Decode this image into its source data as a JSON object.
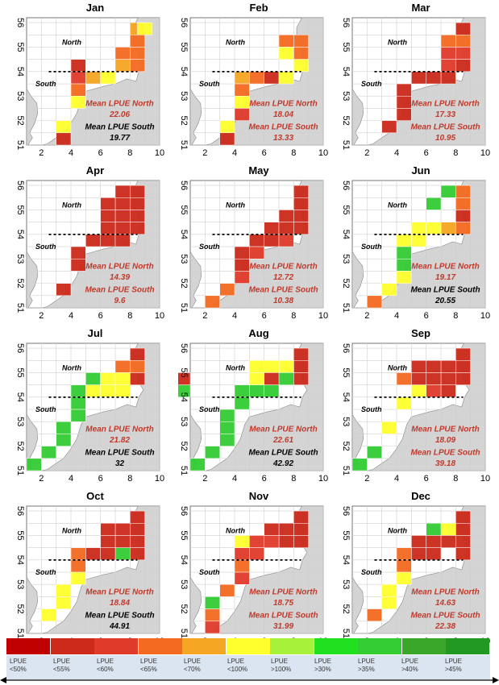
{
  "axes": {
    "x_ticks": [
      "2",
      "4",
      "6",
      "8",
      "10"
    ],
    "y_ticks": [
      "51",
      "52",
      "53",
      "54",
      "55",
      "56"
    ]
  },
  "labels": {
    "north": "North",
    "south": "South",
    "mean_north": "Mean LPUE North",
    "mean_south": "Mean LPUE South"
  },
  "colors": {
    "c1": "#c00000",
    "c2": "#cc2a1a",
    "c3": "#e03b2a",
    "c4": "#f46a20",
    "c5": "#f5a623",
    "c6": "#ffff2e",
    "c7": "#a6f23a",
    "c8": "#20e020",
    "c9": "#33cc33",
    "c10": "#3aa62a",
    "c11": "#229922",
    "land": "#d4d4d4",
    "sea": "#ffffff"
  },
  "months": [
    {
      "name": "Jan",
      "north": "22.06",
      "south": "19.77",
      "north_color": "#c0392b",
      "south_color": "#000000",
      "cells": [
        [
          8,
          55.5,
          "c5"
        ],
        [
          8,
          55,
          "c4"
        ],
        [
          8,
          54.5,
          "c4"
        ],
        [
          7,
          54.5,
          "c4"
        ],
        [
          8,
          54,
          "c4"
        ],
        [
          7,
          54,
          "c5"
        ],
        [
          4,
          54,
          "c2"
        ],
        [
          5,
          53.5,
          "c5"
        ],
        [
          4,
          53.5,
          "c3"
        ],
        [
          6,
          53.5,
          "c6"
        ],
        [
          4,
          53,
          "c4"
        ],
        [
          4,
          52.5,
          "c6"
        ],
        [
          3,
          51.5,
          "c6"
        ],
        [
          3,
          51,
          "c2"
        ],
        [
          8.5,
          55.5,
          "c6"
        ]
      ]
    },
    {
      "name": "Feb",
      "north": "18.04",
      "south": "13.33",
      "north_color": "#c0392b",
      "south_color": "#c0392b",
      "cells": [
        [
          8,
          55,
          "c4"
        ],
        [
          7,
          55,
          "c4"
        ],
        [
          8,
          54.5,
          "c4"
        ],
        [
          7,
          54.5,
          "c6"
        ],
        [
          8,
          54,
          "c6"
        ],
        [
          6,
          53.5,
          "c2"
        ],
        [
          5,
          53.5,
          "c4"
        ],
        [
          4,
          53.5,
          "c5"
        ],
        [
          4,
          53,
          "c4"
        ],
        [
          4,
          52.5,
          "c6"
        ],
        [
          4,
          52,
          "c3"
        ],
        [
          3,
          51.5,
          "c6"
        ],
        [
          3,
          51,
          "c2"
        ],
        [
          7,
          53.5,
          "c6"
        ]
      ]
    },
    {
      "name": "Mar",
      "north": "17.33",
      "south": "10.95",
      "north_color": "#c0392b",
      "south_color": "#c0392b",
      "cells": [
        [
          8,
          55.5,
          "c2"
        ],
        [
          8,
          55,
          "c4"
        ],
        [
          7,
          55,
          "c4"
        ],
        [
          8,
          54.5,
          "c3"
        ],
        [
          7,
          54.5,
          "c3"
        ],
        [
          8,
          54,
          "c2"
        ],
        [
          7,
          53.5,
          "c2"
        ],
        [
          6,
          53.5,
          "c2"
        ],
        [
          5,
          53.5,
          "c2"
        ],
        [
          4,
          53,
          "c2"
        ],
        [
          4,
          52.5,
          "c2"
        ],
        [
          4,
          52,
          "c2"
        ],
        [
          3,
          51.5,
          "c2"
        ],
        [
          7,
          54,
          "c3"
        ]
      ]
    },
    {
      "name": "Apr",
      "north": "14.39",
      "south": "9.6",
      "north_color": "#c0392b",
      "south_color": "#c0392b",
      "cells": [
        [
          8,
          55.5,
          "c2"
        ],
        [
          7,
          55.5,
          "c2"
        ],
        [
          8,
          55,
          "c2"
        ],
        [
          7,
          55,
          "c2"
        ],
        [
          6,
          55,
          "c2"
        ],
        [
          8,
          54.5,
          "c2"
        ],
        [
          7,
          54.5,
          "c2"
        ],
        [
          6,
          54.5,
          "c2"
        ],
        [
          8,
          54,
          "c2"
        ],
        [
          7,
          54,
          "c2"
        ],
        [
          6,
          54,
          "c2"
        ],
        [
          6,
          53.5,
          "c2"
        ],
        [
          5,
          53.5,
          "c2"
        ],
        [
          4,
          53,
          "c2"
        ],
        [
          4,
          52.5,
          "c2"
        ],
        [
          3,
          51.5,
          "c2"
        ],
        [
          7,
          53.5,
          "c2"
        ]
      ]
    },
    {
      "name": "May",
      "north": "12.72",
      "south": "10.38",
      "north_color": "#c0392b",
      "south_color": "#c0392b",
      "cells": [
        [
          8,
          55.5,
          "c2"
        ],
        [
          8,
          55,
          "c2"
        ],
        [
          8,
          54.5,
          "c2"
        ],
        [
          7,
          54.5,
          "c2"
        ],
        [
          6,
          54,
          "c2"
        ],
        [
          8,
          54,
          "c2"
        ],
        [
          7,
          54,
          "c2"
        ],
        [
          5,
          53.5,
          "c2"
        ],
        [
          6,
          53.5,
          "c2"
        ],
        [
          7,
          53.5,
          "c3"
        ],
        [
          4,
          53,
          "c2"
        ],
        [
          4,
          52.5,
          "c2"
        ],
        [
          4,
          52,
          "c3"
        ],
        [
          3,
          51.5,
          "c4"
        ],
        [
          2,
          51,
          "c4"
        ],
        [
          5,
          53,
          "c3"
        ]
      ]
    },
    {
      "name": "Jun",
      "north": "19.17",
      "south": "20.55",
      "north_color": "#c0392b",
      "south_color": "#000000",
      "cells": [
        [
          7,
          55.5,
          "c9"
        ],
        [
          8,
          55.5,
          "c4"
        ],
        [
          6,
          55,
          "c9"
        ],
        [
          8,
          55,
          "c4"
        ],
        [
          8,
          54.5,
          "c2"
        ],
        [
          8,
          54,
          "c4"
        ],
        [
          7,
          54,
          "c5"
        ],
        [
          6,
          54,
          "c6"
        ],
        [
          5,
          54,
          "c6"
        ],
        [
          4,
          53.5,
          "c6"
        ],
        [
          4,
          53,
          "c9"
        ],
        [
          4,
          52.5,
          "c9"
        ],
        [
          4,
          52,
          "c6"
        ],
        [
          3,
          51.5,
          "c6"
        ],
        [
          2,
          51,
          "c4"
        ],
        [
          5,
          53.5,
          "c6"
        ]
      ]
    },
    {
      "name": "Jul",
      "north": "21.82",
      "south": "32",
      "north_color": "#c0392b",
      "south_color": "#000000",
      "cells": [
        [
          8,
          55.5,
          "c2"
        ],
        [
          8,
          55,
          "c4"
        ],
        [
          7,
          55,
          "c4"
        ],
        [
          8,
          54.5,
          "c2"
        ],
        [
          5,
          54.5,
          "c9"
        ],
        [
          7,
          54.5,
          "c6"
        ],
        [
          6,
          54.5,
          "c6"
        ],
        [
          6,
          54,
          "c6"
        ],
        [
          5,
          54,
          "c6"
        ],
        [
          4,
          54,
          "c9"
        ],
        [
          4,
          53.5,
          "c9"
        ],
        [
          4,
          53,
          "c9"
        ],
        [
          3,
          52.5,
          "c9"
        ],
        [
          3,
          52,
          "c9"
        ],
        [
          2,
          51.5,
          "c9"
        ],
        [
          1,
          51,
          "c9"
        ],
        [
          7,
          54,
          "c6"
        ]
      ]
    },
    {
      "name": "Aug",
      "north": "22.61",
      "south": "42.92",
      "north_color": "#c0392b",
      "south_color": "#000000",
      "cells": [
        [
          8,
          55.5,
          "c2"
        ],
        [
          8,
          55,
          "c2"
        ],
        [
          7,
          55,
          "c6"
        ],
        [
          6,
          55,
          "c6"
        ],
        [
          5,
          55,
          "c6"
        ],
        [
          8,
          54.5,
          "c2"
        ],
        [
          7,
          54.5,
          "c9"
        ],
        [
          6,
          54.5,
          "c2"
        ],
        [
          5,
          54.5,
          "c6"
        ],
        [
          6,
          54,
          "c9"
        ],
        [
          5,
          54,
          "c9"
        ],
        [
          4,
          54,
          "c9"
        ],
        [
          4,
          53.5,
          "c9"
        ],
        [
          3,
          53,
          "c9"
        ],
        [
          3,
          52.5,
          "c9"
        ],
        [
          3,
          52,
          "c9"
        ],
        [
          2,
          51.5,
          "c9"
        ],
        [
          1,
          51,
          "c9"
        ],
        [
          0,
          54.5,
          "c2"
        ],
        [
          0,
          54,
          "c9"
        ]
      ]
    },
    {
      "name": "Sep",
      "north": "18.09",
      "south": "39.18",
      "north_color": "#c0392b",
      "south_color": "#c0392b",
      "cells": [
        [
          8,
          55.5,
          "c2"
        ],
        [
          8,
          55,
          "c2"
        ],
        [
          7,
          55,
          "c2"
        ],
        [
          6,
          55,
          "c2"
        ],
        [
          5,
          55,
          "c2"
        ],
        [
          8,
          54.5,
          "c2"
        ],
        [
          7,
          54.5,
          "c2"
        ],
        [
          6,
          54.5,
          "c2"
        ],
        [
          5,
          54.5,
          "c2"
        ],
        [
          4,
          54.5,
          "c4"
        ],
        [
          7,
          54,
          "c2"
        ],
        [
          6,
          54,
          "c3"
        ],
        [
          5,
          54,
          "c6"
        ],
        [
          4,
          53.5,
          "c6"
        ],
        [
          3,
          52.5,
          "c6"
        ],
        [
          2,
          51.5,
          "c9"
        ],
        [
          1,
          51,
          "c9"
        ]
      ]
    },
    {
      "name": "Oct",
      "north": "18.84",
      "south": "44.91",
      "north_color": "#c0392b",
      "south_color": "#000000",
      "cells": [
        [
          8,
          55.5,
          "c2"
        ],
        [
          8,
          55,
          "c2"
        ],
        [
          7,
          55,
          "c2"
        ],
        [
          6,
          55,
          "c2"
        ],
        [
          8,
          54.5,
          "c2"
        ],
        [
          7,
          54.5,
          "c2"
        ],
        [
          6,
          54.5,
          "c2"
        ],
        [
          7,
          54,
          "c9"
        ],
        [
          5,
          54,
          "c2"
        ],
        [
          4,
          54,
          "c4"
        ],
        [
          6,
          54,
          "c2"
        ],
        [
          4,
          53.5,
          "c4"
        ],
        [
          4,
          53,
          "c6"
        ],
        [
          3,
          52.5,
          "c6"
        ],
        [
          3,
          52,
          "c6"
        ],
        [
          2,
          51.5,
          "c6"
        ],
        [
          8,
          54,
          "c2"
        ]
      ]
    },
    {
      "name": "Nov",
      "north": "18.75",
      "south": "31.99",
      "north_color": "#c0392b",
      "south_color": "#c0392b",
      "cells": [
        [
          8,
          55.5,
          "c2"
        ],
        [
          8,
          55,
          "c2"
        ],
        [
          7,
          55,
          "c2"
        ],
        [
          6,
          55,
          "c2"
        ],
        [
          8,
          54.5,
          "c2"
        ],
        [
          4,
          54.5,
          "c6"
        ],
        [
          7,
          54.5,
          "c2"
        ],
        [
          6,
          54.5,
          "c3"
        ],
        [
          5,
          54.5,
          "c3"
        ],
        [
          4,
          54,
          "c3"
        ],
        [
          5,
          54,
          "c3"
        ],
        [
          4,
          53.5,
          "c4"
        ],
        [
          4,
          53,
          "c3"
        ],
        [
          3,
          52.5,
          "c4"
        ],
        [
          2,
          52,
          "c9"
        ],
        [
          2,
          51.5,
          "c4"
        ],
        [
          2,
          51,
          "c3"
        ]
      ]
    },
    {
      "name": "Dec",
      "north": "14.63",
      "south": "22.38",
      "north_color": "#c0392b",
      "south_color": "#c0392b",
      "cells": [
        [
          8,
          55.5,
          "c2"
        ],
        [
          8,
          55,
          "c2"
        ],
        [
          7,
          55,
          "c6"
        ],
        [
          6,
          55,
          "c9"
        ],
        [
          8,
          54.5,
          "c2"
        ],
        [
          5,
          54.5,
          "c2"
        ],
        [
          7,
          54.5,
          "c2"
        ],
        [
          6,
          54.5,
          "c2"
        ],
        [
          5,
          54,
          "c2"
        ],
        [
          4,
          54,
          "c4"
        ],
        [
          6,
          54,
          "c2"
        ],
        [
          4,
          53.5,
          "c4"
        ],
        [
          4,
          53,
          "c6"
        ],
        [
          3,
          52.5,
          "c6"
        ],
        [
          3,
          52,
          "c6"
        ],
        [
          2,
          51.5,
          "c4"
        ],
        [
          8,
          54,
          "c2"
        ]
      ]
    }
  ],
  "legend": [
    {
      "label": "LPUE <50%",
      "color": "#c00000"
    },
    {
      "label": "LPUE <55%",
      "color": "#cc2a1a"
    },
    {
      "label": "LPUE <60%",
      "color": "#e03b2a"
    },
    {
      "label": "LPUE <65%",
      "color": "#f46a20"
    },
    {
      "label": "LPUE <70%",
      "color": "#f5a623"
    },
    {
      "label": "LPUE <100%",
      "color": "#ffff2e"
    },
    {
      "label": "LPUE >100%",
      "color": "#a6f23a"
    },
    {
      "label": "LPUE >30%",
      "color": "#20e020"
    },
    {
      "label": "LPUE >35%",
      "color": "#33cc33"
    },
    {
      "label": "LPUE >40%",
      "color": "#3aa62a"
    },
    {
      "label": "LPUE >45%",
      "color": "#229922"
    }
  ]
}
